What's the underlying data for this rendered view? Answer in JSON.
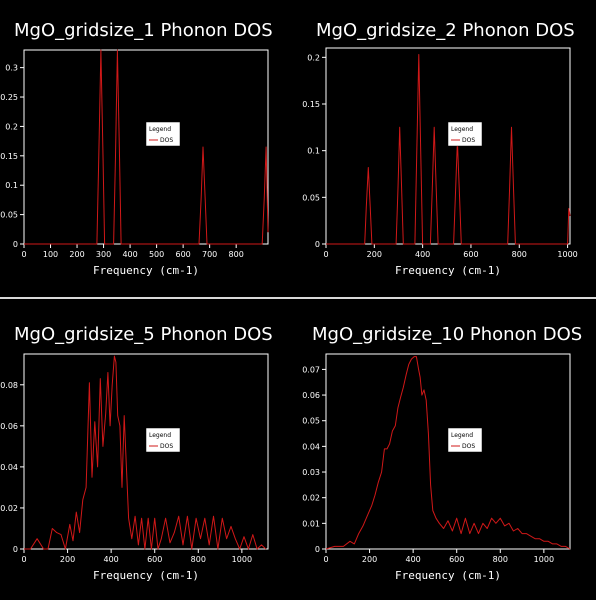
{
  "chart_data": [
    {
      "type": "line",
      "title": "MgO_gridsize_1 Phonon DOS",
      "xlabel": "Frequency (cm-1)",
      "ylabel": "",
      "xlim": [
        0,
        920
      ],
      "ylim": [
        0,
        0.33
      ],
      "xticks": [
        0,
        100,
        200,
        300,
        400,
        500,
        600,
        700,
        800
      ],
      "yticks": [
        0,
        0.05,
        0.1,
        0.15,
        0.2,
        0.25,
        0.3
      ],
      "legend_title": "Legend",
      "series": [
        {
          "name": "DOS",
          "color": "#d01818",
          "x": [
            0,
            275,
            282,
            290,
            298,
            304,
            338,
            345,
            352,
            360,
            366,
            660,
            668,
            675,
            683,
            690,
            898,
            906,
            913,
            920
          ],
          "y": [
            0,
            0,
            0.15,
            0.33,
            0.15,
            0,
            0,
            0.15,
            0.33,
            0.15,
            0,
            0,
            0.08,
            0.165,
            0.08,
            0,
            0,
            0.08,
            0.165,
            0.02
          ]
        }
      ]
    },
    {
      "type": "line",
      "title": "MgO_gridsize_2 Phonon DOS",
      "xlabel": "Frequency (cm-1)",
      "ylabel": "",
      "xlim": [
        0,
        1010
      ],
      "ylim": [
        0,
        0.21
      ],
      "xticks": [
        0,
        200,
        400,
        600,
        800,
        1000
      ],
      "yticks": [
        0,
        0.05,
        0.1,
        0.15,
        0.2
      ],
      "legend_title": "Legend",
      "series": [
        {
          "name": "DOS",
          "color": "#d01818",
          "x": [
            0,
            160,
            167,
            175,
            183,
            190,
            290,
            298,
            305,
            313,
            320,
            368,
            376,
            384,
            392,
            400,
            432,
            440,
            448,
            456,
            464,
            528,
            536,
            544,
            552,
            560,
            752,
            760,
            768,
            776,
            784,
            1000,
            1005,
            1010
          ],
          "y": [
            0,
            0,
            0.04,
            0.082,
            0.04,
            0,
            0,
            0.06,
            0.125,
            0.06,
            0,
            0,
            0.1,
            0.203,
            0.1,
            0,
            0,
            0.06,
            0.125,
            0.06,
            0,
            0,
            0.055,
            0.11,
            0.055,
            0,
            0,
            0.06,
            0.125,
            0.06,
            0,
            0,
            0.038,
            0.03
          ]
        }
      ]
    },
    {
      "type": "line",
      "title": "MgO_gridsize_5 Phonon DOS",
      "xlabel": "Frequency (cm-1)",
      "ylabel": "",
      "xlim": [
        0,
        1120
      ],
      "ylim": [
        0,
        0.095
      ],
      "xticks": [
        0,
        200,
        400,
        600,
        800,
        1000
      ],
      "yticks": [
        0,
        0.02,
        0.04,
        0.06,
        0.08
      ],
      "legend_title": "Legend",
      "series": [
        {
          "name": "DOS",
          "color": "#d01818",
          "x": [
            0,
            30,
            60,
            90,
            110,
            130,
            150,
            170,
            190,
            210,
            225,
            240,
            255,
            270,
            285,
            300,
            312,
            325,
            338,
            350,
            362,
            375,
            385,
            395,
            405,
            415,
            422,
            430,
            440,
            450,
            460,
            470,
            480,
            495,
            510,
            525,
            540,
            555,
            570,
            585,
            600,
            615,
            630,
            650,
            670,
            690,
            710,
            730,
            750,
            770,
            790,
            810,
            830,
            850,
            870,
            890,
            910,
            930,
            950,
            970,
            990,
            1010,
            1030,
            1050,
            1070,
            1090,
            1110
          ],
          "y": [
            0,
            0,
            0.005,
            0,
            0,
            0.01,
            0.008,
            0.007,
            0,
            0.012,
            0.004,
            0.018,
            0.008,
            0.024,
            0.03,
            0.081,
            0.035,
            0.062,
            0.04,
            0.083,
            0.05,
            0.066,
            0.086,
            0.06,
            0.08,
            0.094,
            0.091,
            0.065,
            0.06,
            0.03,
            0.065,
            0.04,
            0.015,
            0.005,
            0.016,
            0.002,
            0.015,
            0,
            0.015,
            0,
            0.015,
            0,
            0.005,
            0.015,
            0.003,
            0.008,
            0.016,
            0.002,
            0.016,
            0,
            0.015,
            0.005,
            0.015,
            0.002,
            0.016,
            0,
            0.015,
            0.005,
            0.011,
            0.005,
            0,
            0.006,
            0,
            0.007,
            0,
            0.002,
            0
          ]
        }
      ]
    },
    {
      "type": "line",
      "title": "MgO_gridsize_10 Phonon DOS",
      "xlabel": "Frequency (cm-1)",
      "ylabel": "",
      "xlim": [
        0,
        1120
      ],
      "ylim": [
        0,
        0.076
      ],
      "xticks": [
        0,
        200,
        400,
        600,
        800,
        1000
      ],
      "yticks": [
        0,
        0.01,
        0.02,
        0.03,
        0.04,
        0.05,
        0.06,
        0.07
      ],
      "legend_title": "Legend",
      "series": [
        {
          "name": "DOS",
          "color": "#d01818",
          "x": [
            0,
            40,
            80,
            110,
            130,
            150,
            170,
            190,
            210,
            225,
            240,
            255,
            268,
            280,
            292,
            305,
            318,
            330,
            342,
            355,
            368,
            380,
            392,
            405,
            415,
            425,
            432,
            440,
            450,
            460,
            470,
            480,
            490,
            505,
            520,
            540,
            560,
            580,
            600,
            620,
            640,
            660,
            680,
            700,
            720,
            740,
            760,
            780,
            800,
            820,
            840,
            860,
            880,
            900,
            920,
            940,
            960,
            980,
            1000,
            1020,
            1040,
            1060,
            1080,
            1100,
            1120
          ],
          "y": [
            0,
            0.001,
            0.001,
            0.003,
            0.002,
            0.006,
            0.009,
            0.013,
            0.017,
            0.021,
            0.026,
            0.03,
            0.039,
            0.039,
            0.041,
            0.046,
            0.048,
            0.055,
            0.059,
            0.063,
            0.068,
            0.072,
            0.074,
            0.075,
            0.075,
            0.07,
            0.067,
            0.06,
            0.062,
            0.058,
            0.045,
            0.025,
            0.015,
            0.012,
            0.01,
            0.008,
            0.011,
            0.007,
            0.012,
            0.006,
            0.012,
            0.006,
            0.01,
            0.006,
            0.01,
            0.008,
            0.012,
            0.01,
            0.012,
            0.009,
            0.01,
            0.007,
            0.008,
            0.006,
            0.006,
            0.005,
            0.004,
            0.004,
            0.003,
            0.003,
            0.002,
            0.002,
            0.001,
            0.001,
            0
          ]
        }
      ]
    }
  ]
}
